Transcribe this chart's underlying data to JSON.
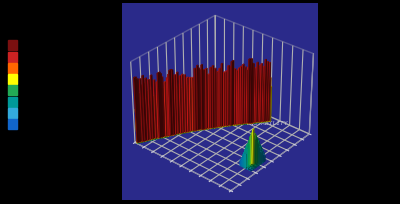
{
  "background_color": "#000000",
  "floor_color": "#2a2a8a",
  "grid_color": "#8888aa",
  "text_color": "#ccccdd",
  "sea_label": "SEA OF INSTABILITY",
  "legend_colors": [
    "#7a1010",
    "#cc2222",
    "#ff6600",
    "#ffff00",
    "#22aa55",
    "#009999",
    "#33aadd",
    "#1166cc"
  ],
  "elev": 32,
  "azim": -50,
  "figsize": [
    4.0,
    2.05
  ],
  "dpi": 100
}
